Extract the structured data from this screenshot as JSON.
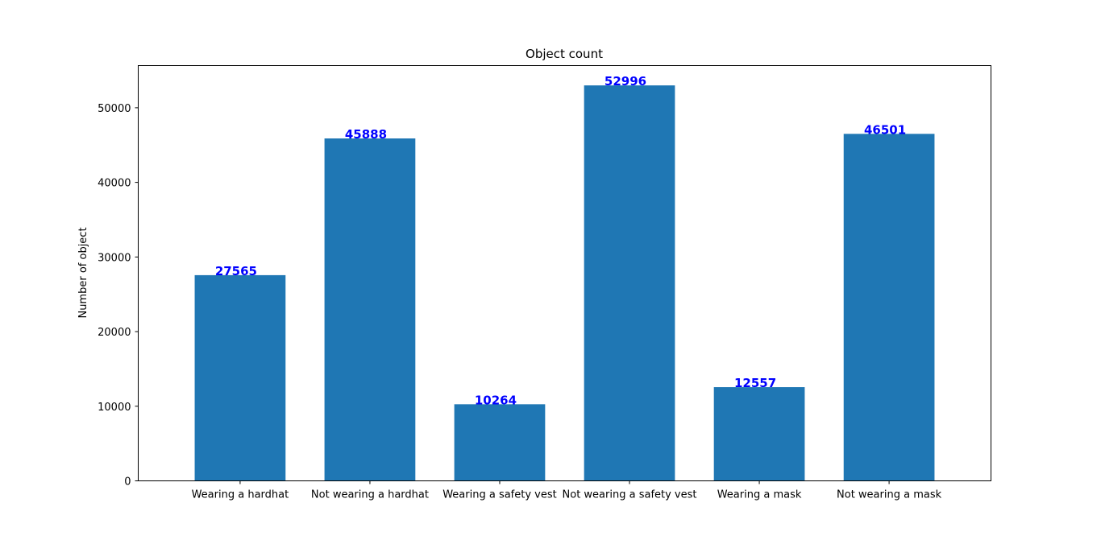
{
  "chart_data": {
    "type": "bar",
    "title": "Object count",
    "xlabel": "",
    "ylabel": "Number of object",
    "categories": [
      "Wearing a hardhat",
      "Not wearing a hardhat",
      "Wearing a safety vest",
      "Not wearing a safety vest",
      "Wearing a mask",
      "Not wearing a mask"
    ],
    "values": [
      27565,
      45888,
      10264,
      52996,
      12557,
      46501
    ],
    "ylim": [
      0,
      55650
    ],
    "yticks": [
      0,
      10000,
      20000,
      30000,
      40000,
      50000
    ],
    "grid": false,
    "bar_color": "#1f77b4",
    "label_color": "#0000ff"
  }
}
